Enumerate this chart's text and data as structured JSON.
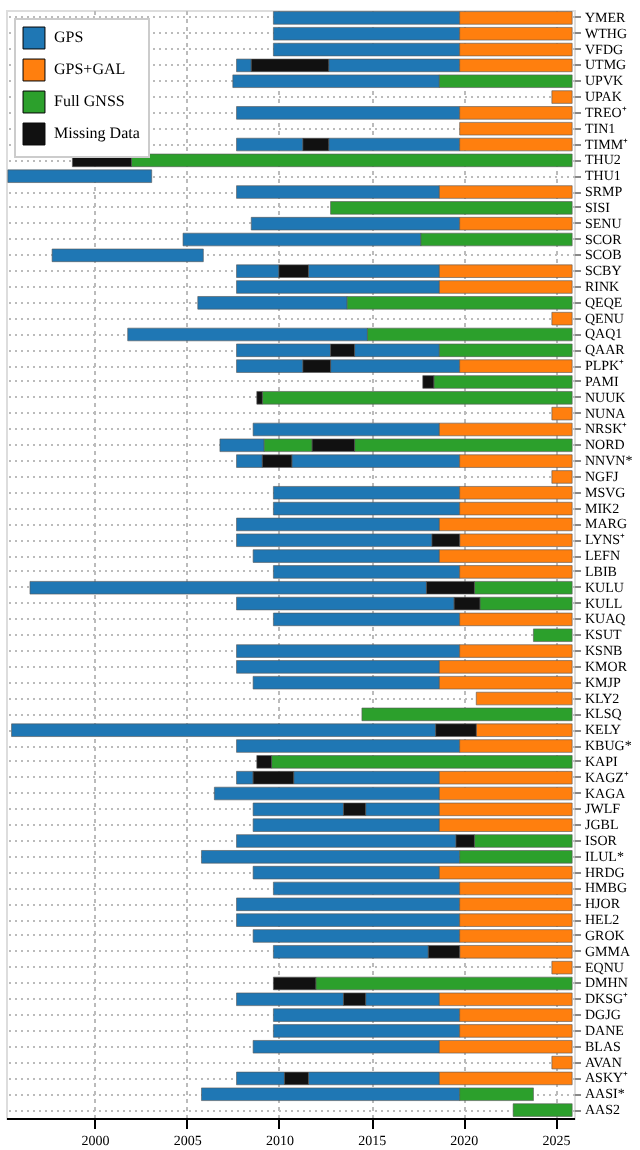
{
  "chart_data": {
    "type": "bar",
    "orientation": "horizontal",
    "grid": true,
    "legend": "top left",
    "xlim": [
      1995.2,
      2026.0
    ],
    "xticks": [
      2000,
      2005,
      2010,
      2015,
      2020,
      2025
    ],
    "categories": [
      "YMER",
      "WTHG",
      "VFDG",
      "UTMG",
      "UPVK",
      "UPAK",
      "TREO⁺",
      "TIN1",
      "TIMM⁺",
      "THU2",
      "THU1",
      "SRMP",
      "SISI",
      "SENU",
      "SCOR",
      "SCOB",
      "SCBY",
      "RINK",
      "QEQE",
      "QENU",
      "QAQ1",
      "QAAR",
      "PLPK⁺",
      "PAMI",
      "NUUK",
      "NUNA",
      "NRSK⁺",
      "NORD",
      "NNVN*",
      "NGFJ",
      "MSVG",
      "MIK2",
      "MARG",
      "LYNS⁺",
      "LEFN",
      "LBIB",
      "KULU",
      "KULL",
      "KUAQ",
      "KSUT",
      "KSNB",
      "KMOR",
      "KMJP",
      "KLY2",
      "KLSQ",
      "KELY",
      "KBUG*",
      "KAPI",
      "KAGZ⁺",
      "KAGA",
      "JWLF",
      "JGBL",
      "ISOR",
      "ILUL*",
      "HRDG",
      "HMBG",
      "HJOR",
      "HEL2",
      "GROK",
      "GMMA",
      "EQNU",
      "DMHN",
      "DKSG⁺",
      "DGJG",
      "DANE",
      "BLAS",
      "AVAN",
      "ASKY⁺",
      "AASI*",
      "AAS2"
    ],
    "series": [
      {
        "name": "GPS",
        "color": "#1f77b4",
        "base": [
          2009.7,
          2009.7,
          2009.7,
          2007.7,
          2007.5,
          null,
          2007.7,
          null,
          2007.7,
          null,
          1995.3,
          2007.7,
          null,
          2008.5,
          2004.8,
          1997.7,
          2007.7,
          2007.7,
          2005.6,
          null,
          2001.8,
          2007.7,
          2007.7,
          null,
          null,
          null,
          2008.6,
          2006.8,
          2007.7,
          null,
          2009.7,
          2009.7,
          2007.7,
          2007.7,
          2008.6,
          2009.7,
          1996.5,
          2007.7,
          2009.7,
          null,
          2007.7,
          2007.7,
          2008.6,
          null,
          null,
          1995.5,
          2007.7,
          null,
          2007.7,
          2006.5,
          2008.6,
          2008.6,
          2007.7,
          2005.8,
          2008.6,
          2009.7,
          2007.7,
          2007.7,
          2008.6,
          2009.7,
          null,
          null,
          2007.7,
          2009.7,
          2009.7,
          2008.6,
          null,
          2007.7,
          2005.8,
          null
        ],
        "values": [
          10.1,
          10.1,
          10.1,
          0.8,
          11.2,
          null,
          12.1,
          null,
          3.6,
          null,
          7.8,
          11.0,
          null,
          11.3,
          12.9,
          8.2,
          2.3,
          11.0,
          8.1,
          null,
          13.0,
          5.1,
          3.6,
          null,
          null,
          null,
          10.1,
          2.4,
          1.4,
          null,
          10.1,
          10.1,
          11.0,
          10.6,
          10.1,
          10.1,
          21.5,
          11.8,
          10.1,
          null,
          12.1,
          11.0,
          10.1,
          null,
          null,
          23.0,
          12.1,
          null,
          0.9,
          12.2,
          4.9,
          10.1,
          11.9,
          14.0,
          10.1,
          10.1,
          12.1,
          12.1,
          11.2,
          8.4,
          null,
          null,
          5.8,
          10.1,
          10.1,
          10.1,
          null,
          2.6,
          14.0,
          null
        ]
      },
      {
        "color": "#1f77b4",
        "base": [
          null,
          null,
          null,
          2012.7,
          null,
          null,
          null,
          null,
          2012.7,
          null,
          null,
          null,
          null,
          null,
          null,
          null,
          2011.6,
          null,
          null,
          null,
          null,
          2014.1,
          2012.8,
          null,
          null,
          null,
          null,
          null,
          2010.7,
          null,
          null,
          null,
          null,
          null,
          null,
          null,
          null,
          null,
          null,
          null,
          null,
          null,
          null,
          null,
          null,
          null,
          null,
          null,
          2010.8,
          null,
          2014.7,
          null,
          null,
          null,
          null,
          null,
          null,
          null,
          null,
          null,
          null,
          null,
          2014.7,
          null,
          null,
          null,
          null,
          2011.6,
          null,
          null
        ],
        "values": [
          null,
          null,
          null,
          7.1,
          null,
          null,
          null,
          null,
          7.1,
          null,
          null,
          null,
          null,
          null,
          null,
          null,
          7.1,
          null,
          null,
          null,
          null,
          4.6,
          7.0,
          null,
          null,
          null,
          null,
          null,
          9.1,
          null,
          null,
          null,
          null,
          null,
          null,
          null,
          null,
          null,
          null,
          null,
          null,
          null,
          null,
          null,
          null,
          null,
          null,
          null,
          7.9,
          null,
          4.0,
          null,
          null,
          null,
          null,
          null,
          null,
          null,
          null,
          null,
          null,
          null,
          4.0,
          null,
          null,
          null,
          null,
          7.1,
          null,
          null
        ]
      },
      {
        "name": "GPS+GAL",
        "color": "#ff7f0e",
        "base": [
          2019.8,
          2019.8,
          2019.8,
          2019.8,
          null,
          2024.8,
          2019.8,
          2019.8,
          2019.8,
          null,
          null,
          2018.7,
          null,
          2019.8,
          null,
          null,
          2018.7,
          2018.7,
          null,
          2024.8,
          null,
          null,
          2019.8,
          null,
          null,
          2024.8,
          2018.7,
          null,
          2019.8,
          2024.8,
          2019.8,
          2019.8,
          2018.7,
          2019.8,
          2018.7,
          2019.8,
          null,
          null,
          2019.8,
          null,
          2019.8,
          2018.7,
          2018.7,
          2020.7,
          null,
          2020.7,
          2019.8,
          null,
          2018.7,
          2018.7,
          2018.7,
          2018.7,
          null,
          null,
          2018.7,
          2019.8,
          2019.8,
          2019.8,
          2019.8,
          2019.8,
          2024.8,
          null,
          2018.7,
          2019.8,
          2019.8,
          2018.7,
          2024.8,
          2018.7,
          null,
          null
        ],
        "values": [
          6.1,
          6.1,
          6.1,
          6.1,
          null,
          1.1,
          6.1,
          6.1,
          6.1,
          null,
          null,
          7.2,
          null,
          6.1,
          null,
          null,
          7.2,
          7.2,
          null,
          1.1,
          null,
          null,
          6.1,
          null,
          null,
          1.1,
          7.2,
          null,
          6.1,
          1.1,
          6.1,
          6.1,
          7.2,
          6.1,
          7.2,
          6.1,
          null,
          null,
          6.1,
          null,
          6.1,
          7.2,
          7.2,
          5.2,
          null,
          5.2,
          6.1,
          null,
          7.2,
          7.2,
          7.2,
          7.2,
          null,
          null,
          7.2,
          6.1,
          6.1,
          6.1,
          6.1,
          6.1,
          1.1,
          null,
          7.2,
          6.1,
          6.1,
          7.2,
          1.1,
          7.2,
          null,
          null
        ]
      },
      {
        "name": "Full GNSS",
        "color": "#2ca02c",
        "base": [
          null,
          null,
          null,
          null,
          2018.7,
          null,
          null,
          null,
          null,
          2002.0,
          null,
          null,
          2012.8,
          null,
          2017.7,
          null,
          null,
          null,
          2013.7,
          null,
          2014.8,
          2018.7,
          null,
          2018.4,
          2009.1,
          null,
          null,
          2009.2,
          null,
          null,
          null,
          null,
          null,
          null,
          null,
          null,
          2020.6,
          2020.9,
          null,
          2023.8,
          null,
          null,
          null,
          null,
          2014.5,
          null,
          null,
          2009.6,
          null,
          null,
          null,
          null,
          2020.6,
          2019.8,
          null,
          null,
          null,
          null,
          null,
          null,
          null,
          2012.0,
          null,
          null,
          null,
          null,
          null,
          null,
          2019.8,
          2022.7
        ],
        "values": [
          null,
          null,
          null,
          null,
          7.2,
          null,
          null,
          null,
          null,
          23.9,
          null,
          null,
          13.1,
          null,
          8.2,
          null,
          null,
          null,
          12.2,
          null,
          11.1,
          7.2,
          null,
          7.5,
          16.8,
          null,
          null,
          2.6,
          null,
          null,
          null,
          null,
          null,
          null,
          null,
          null,
          5.3,
          5.0,
          null,
          2.1,
          null,
          null,
          null,
          null,
          11.4,
          null,
          null,
          16.3,
          null,
          null,
          null,
          null,
          5.3,
          6.1,
          null,
          null,
          null,
          null,
          null,
          null,
          null,
          13.9,
          null,
          null,
          null,
          null,
          null,
          null,
          4.0,
          3.2
        ]
      },
      {
        "color": "#2ca02c",
        "base": [
          null,
          null,
          null,
          null,
          null,
          null,
          null,
          null,
          null,
          null,
          null,
          null,
          null,
          null,
          null,
          null,
          null,
          null,
          null,
          null,
          null,
          null,
          null,
          null,
          null,
          null,
          null,
          2014.1,
          null,
          null,
          null,
          null,
          null,
          null,
          null,
          null,
          null,
          null,
          null,
          null,
          null,
          null,
          null,
          null,
          null,
          null,
          null,
          null,
          null,
          null,
          null,
          null,
          null,
          null,
          null,
          null,
          null,
          null,
          null,
          null,
          null,
          null,
          null,
          null,
          null,
          null,
          null,
          null,
          null,
          null
        ],
        "values": [
          null,
          null,
          null,
          null,
          null,
          null,
          null,
          null,
          null,
          null,
          null,
          null,
          null,
          null,
          null,
          null,
          null,
          null,
          null,
          null,
          null,
          null,
          null,
          null,
          null,
          null,
          null,
          11.8,
          null,
          null,
          null,
          null,
          null,
          null,
          null,
          null,
          null,
          null,
          null,
          null,
          null,
          null,
          null,
          null,
          null,
          null,
          null,
          null,
          null,
          null,
          null,
          null,
          null,
          null,
          null,
          null,
          null,
          null,
          null,
          null,
          null,
          null,
          null,
          null,
          null,
          null,
          null,
          null,
          null,
          null
        ]
      },
      {
        "name": "Missing Data",
        "color": "#111111",
        "base": [
          null,
          null,
          null,
          2008.5,
          null,
          null,
          null,
          null,
          2011.3,
          1998.8,
          null,
          null,
          null,
          null,
          null,
          null,
          2010.0,
          null,
          null,
          null,
          null,
          2012.8,
          2011.3,
          2017.8,
          2008.8,
          null,
          null,
          2011.8,
          2009.1,
          null,
          null,
          null,
          null,
          2018.3,
          null,
          null,
          2018.0,
          2019.5,
          null,
          null,
          null,
          null,
          null,
          null,
          null,
          2018.5,
          null,
          2008.8,
          2008.6,
          null,
          2013.5,
          null,
          2019.6,
          null,
          null,
          null,
          null,
          null,
          null,
          2018.1,
          null,
          2009.7,
          2013.5,
          null,
          null,
          null,
          null,
          2010.3,
          null,
          null
        ],
        "values": [
          null,
          null,
          null,
          4.2,
          null,
          null,
          null,
          null,
          1.4,
          3.2,
          null,
          null,
          null,
          null,
          null,
          null,
          1.6,
          null,
          null,
          null,
          null,
          1.3,
          1.5,
          0.6,
          0.3,
          null,
          null,
          2.3,
          1.6,
          null,
          null,
          null,
          null,
          1.5,
          null,
          null,
          2.6,
          1.4,
          null,
          null,
          null,
          null,
          null,
          null,
          null,
          2.2,
          null,
          0.8,
          2.2,
          null,
          1.2,
          null,
          1.0,
          null,
          null,
          null,
          null,
          null,
          null,
          1.7,
          null,
          2.3,
          1.2,
          null,
          null,
          null,
          null,
          1.3,
          null,
          null
        ]
      }
    ]
  }
}
